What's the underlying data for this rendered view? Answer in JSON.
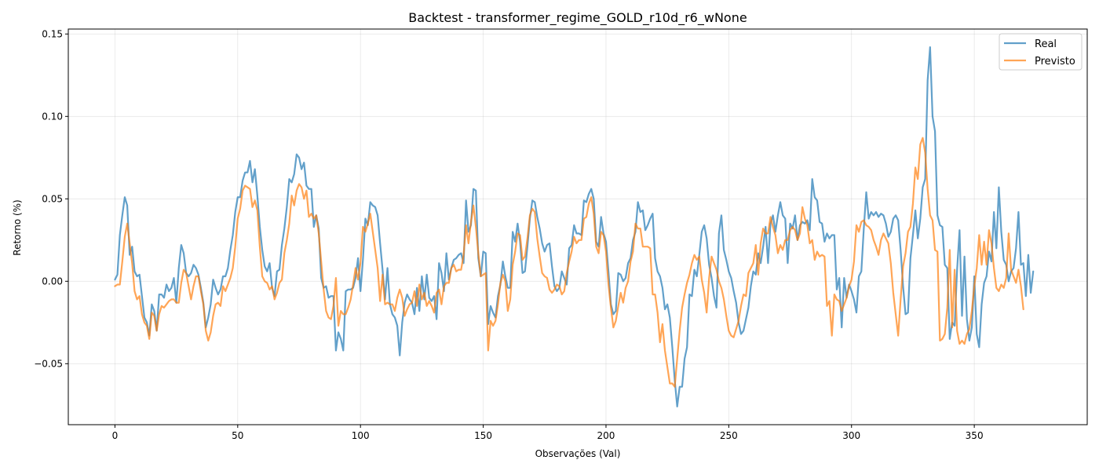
{
  "chart_data": {
    "type": "line",
    "title": "Backtest - transformer_regime_GOLD_r10d_r6_wNone",
    "xlabel": "Observações (Val)",
    "ylabel": "Retorno (%)",
    "xlim": [
      -19,
      396
    ],
    "ylim": [
      -0.087,
      0.153
    ],
    "x_ticks": [
      0,
      50,
      100,
      150,
      200,
      250,
      300,
      350
    ],
    "y_ticks": [
      -0.05,
      0.0,
      0.05,
      0.1,
      0.15
    ],
    "y_tick_labels": [
      "−0.05",
      "0.00",
      "0.05",
      "0.10",
      "0.15"
    ],
    "grid": true,
    "legend_position": "top-right",
    "series": [
      {
        "name": "Real",
        "color": "#1f77b4",
        "opacity": 0.7,
        "x_start": 0,
        "values": [
          0.001,
          0.004,
          0.028,
          0.04,
          0.051,
          0.046,
          0.016,
          0.021,
          0.006,
          0.003,
          0.004,
          -0.009,
          -0.022,
          -0.025,
          -0.033,
          -0.014,
          -0.018,
          -0.03,
          -0.008,
          -0.008,
          -0.01,
          -0.002,
          -0.006,
          -0.004,
          0.002,
          -0.013,
          0.008,
          0.022,
          0.017,
          0.005,
          0.003,
          0.005,
          0.01,
          0.008,
          0.004,
          -0.004,
          -0.013,
          -0.028,
          -0.022,
          -0.014,
          0.001,
          -0.004,
          -0.008,
          -0.005,
          0.003,
          0.003,
          0.008,
          0.019,
          0.028,
          0.042,
          0.051,
          0.051,
          0.061,
          0.066,
          0.066,
          0.073,
          0.06,
          0.068,
          0.052,
          0.033,
          0.019,
          0.009,
          0.006,
          0.011,
          -0.004,
          -0.009,
          0.006,
          0.007,
          0.022,
          0.032,
          0.045,
          0.062,
          0.06,
          0.065,
          0.077,
          0.075,
          0.068,
          0.072,
          0.058,
          0.056,
          0.056,
          0.033,
          0.04,
          0.032,
          0.002,
          -0.004,
          -0.003,
          -0.01,
          -0.009,
          -0.009,
          -0.042,
          -0.031,
          -0.035,
          -0.042,
          -0.006,
          -0.005,
          -0.005,
          -0.004,
          0.002,
          0.014,
          -0.006,
          0.013,
          0.038,
          0.034,
          0.048,
          0.046,
          0.045,
          0.04,
          0.023,
          0.007,
          -0.011,
          0.008,
          -0.014,
          -0.02,
          -0.022,
          -0.027,
          -0.045,
          -0.025,
          -0.013,
          -0.008,
          -0.011,
          -0.013,
          -0.02,
          -0.004,
          -0.018,
          0.003,
          -0.011,
          0.004,
          -0.01,
          -0.012,
          -0.009,
          -0.023,
          0.011,
          0.005,
          -0.006,
          0.017,
          0.001,
          0.008,
          0.013,
          0.014,
          0.016,
          0.017,
          0.011,
          0.049,
          0.03,
          0.034,
          0.056,
          0.055,
          0.014,
          0.003,
          0.018,
          0.017,
          -0.026,
          -0.015,
          -0.019,
          -0.022,
          -0.009,
          -0.002,
          0.012,
          0.003,
          -0.004,
          -0.004,
          0.03,
          0.024,
          0.035,
          0.024,
          0.005,
          0.006,
          0.021,
          0.038,
          0.049,
          0.048,
          0.039,
          0.032,
          0.023,
          0.018,
          0.022,
          0.023,
          0.009,
          -0.003,
          -0.006,
          -0.004,
          0.006,
          0.002,
          -0.002,
          0.02,
          0.022,
          0.034,
          0.029,
          0.029,
          0.028,
          0.049,
          0.048,
          0.053,
          0.056,
          0.05,
          0.024,
          0.021,
          0.039,
          0.029,
          0.024,
          0.006,
          -0.014,
          -0.02,
          -0.018,
          0.005,
          0.004,
          0.0,
          0.002,
          0.011,
          0.014,
          0.025,
          0.03,
          0.048,
          0.042,
          0.043,
          0.031,
          0.034,
          0.038,
          0.041,
          0.014,
          0.006,
          0.003,
          -0.004,
          -0.017,
          -0.014,
          -0.022,
          -0.04,
          -0.06,
          -0.076,
          -0.064,
          -0.064,
          -0.047,
          -0.04,
          -0.008,
          -0.009,
          0.007,
          0.003,
          0.016,
          0.03,
          0.034,
          0.026,
          0.01,
          0.002,
          -0.009,
          -0.016,
          0.029,
          0.04,
          0.019,
          0.013,
          0.006,
          0.002,
          -0.006,
          -0.013,
          -0.025,
          -0.032,
          -0.03,
          -0.023,
          -0.016,
          -0.003,
          0.006,
          0.004,
          0.017,
          0.011,
          0.021,
          0.033,
          0.011,
          0.035,
          0.04,
          0.03,
          0.04,
          0.048,
          0.04,
          0.038,
          0.011,
          0.035,
          0.032,
          0.04,
          0.025,
          0.034,
          0.036,
          0.035,
          0.037,
          0.031,
          0.062,
          0.051,
          0.049,
          0.036,
          0.035,
          0.024,
          0.029,
          0.026,
          0.028,
          0.028,
          -0.005,
          0.002,
          -0.028,
          0.002,
          -0.01,
          -0.002,
          -0.006,
          -0.011,
          -0.019,
          0.003,
          0.006,
          0.032,
          0.054,
          0.038,
          0.042,
          0.04,
          0.042,
          0.039,
          0.041,
          0.04,
          0.035,
          0.027,
          0.03,
          0.038,
          0.04,
          0.037,
          0.019,
          -0.003,
          -0.02,
          -0.019,
          0.014,
          0.028,
          0.043,
          0.026,
          0.038,
          0.057,
          0.062,
          0.122,
          0.142,
          0.1,
          0.091,
          0.04,
          0.034,
          0.033,
          0.01,
          0.008,
          -0.035,
          -0.025,
          -0.027,
          0.007,
          0.031,
          -0.021,
          0.015,
          -0.023,
          -0.036,
          -0.028,
          0.003,
          -0.032,
          -0.04,
          -0.014,
          -0.001,
          0.003,
          0.018,
          0.012,
          0.042,
          0.02,
          0.057,
          0.03,
          0.013,
          0.01,
          0.0,
          0.006,
          0.008,
          0.02,
          0.042,
          0.01,
          0.011,
          -0.009,
          0.016,
          -0.007,
          0.006
        ]
      },
      {
        "name": "Previsto",
        "color": "#ff7f0e",
        "opacity": 0.7,
        "x_start": 0,
        "values": [
          -0.003,
          -0.002,
          -0.002,
          0.012,
          0.027,
          0.035,
          0.023,
          0.011,
          -0.006,
          -0.011,
          -0.009,
          -0.02,
          -0.025,
          -0.027,
          -0.035,
          -0.019,
          -0.021,
          -0.03,
          -0.02,
          -0.015,
          -0.016,
          -0.014,
          -0.012,
          -0.011,
          -0.011,
          -0.013,
          -0.013,
          -0.001,
          0.007,
          0.005,
          -0.003,
          -0.011,
          -0.003,
          0.003,
          0.003,
          -0.006,
          -0.014,
          -0.03,
          -0.036,
          -0.031,
          -0.021,
          -0.014,
          -0.013,
          -0.015,
          -0.003,
          -0.006,
          -0.002,
          0.002,
          0.008,
          0.021,
          0.038,
          0.044,
          0.055,
          0.058,
          0.057,
          0.056,
          0.045,
          0.049,
          0.043,
          0.021,
          0.003,
          0.0,
          -0.001,
          -0.005,
          -0.003,
          -0.011,
          -0.007,
          -0.001,
          0.001,
          0.017,
          0.025,
          0.035,
          0.052,
          0.046,
          0.055,
          0.059,
          0.057,
          0.05,
          0.055,
          0.039,
          0.041,
          0.038,
          0.04,
          0.029,
          0.012,
          -0.005,
          -0.018,
          -0.022,
          -0.023,
          -0.015,
          0.002,
          -0.027,
          -0.018,
          -0.02,
          -0.02,
          -0.016,
          -0.011,
          -0.002,
          0.008,
          0.001,
          0.011,
          0.033,
          0.03,
          0.035,
          0.041,
          0.03,
          0.019,
          0.008,
          -0.012,
          0.004,
          -0.014,
          -0.013,
          -0.014,
          -0.014,
          -0.018,
          -0.01,
          -0.005,
          -0.01,
          -0.021,
          -0.017,
          -0.014,
          -0.013,
          -0.006,
          -0.015,
          -0.002,
          -0.011,
          -0.007,
          -0.015,
          -0.012,
          -0.015,
          -0.019,
          -0.007,
          -0.005,
          -0.014,
          -0.003,
          -0.001,
          -0.001,
          0.008,
          0.01,
          0.006,
          0.007,
          0.007,
          0.016,
          0.034,
          0.023,
          0.036,
          0.046,
          0.033,
          0.017,
          0.003,
          0.004,
          0.005,
          -0.042,
          -0.024,
          -0.027,
          -0.024,
          -0.014,
          -0.001,
          0.004,
          0.0,
          -0.018,
          -0.011,
          0.01,
          0.018,
          0.029,
          0.028,
          0.013,
          0.015,
          0.026,
          0.04,
          0.044,
          0.042,
          0.026,
          0.015,
          0.005,
          0.003,
          0.002,
          -0.005,
          -0.007,
          -0.005,
          -0.002,
          -0.003,
          -0.008,
          -0.006,
          0.005,
          0.012,
          0.018,
          0.027,
          0.023,
          0.025,
          0.025,
          0.038,
          0.039,
          0.047,
          0.051,
          0.041,
          0.021,
          0.017,
          0.03,
          0.028,
          0.018,
          -0.002,
          -0.016,
          -0.028,
          -0.024,
          -0.015,
          -0.007,
          -0.013,
          -0.004,
          0.0,
          0.012,
          0.018,
          0.035,
          0.032,
          0.032,
          0.021,
          0.021,
          0.021,
          0.02,
          -0.008,
          -0.008,
          -0.019,
          -0.037,
          -0.026,
          -0.042,
          -0.052,
          -0.062,
          -0.062,
          -0.064,
          -0.047,
          -0.03,
          -0.016,
          -0.008,
          -0.001,
          0.004,
          0.011,
          0.016,
          0.013,
          0.015,
          0.001,
          -0.007,
          -0.019,
          0.002,
          0.015,
          0.011,
          0.007,
          0.0,
          -0.004,
          -0.011,
          -0.021,
          -0.03,
          -0.033,
          -0.034,
          -0.029,
          -0.024,
          -0.015,
          -0.008,
          -0.009,
          0.005,
          0.008,
          0.011,
          0.022,
          0.004,
          0.023,
          0.032,
          0.029,
          0.029,
          0.039,
          0.033,
          0.028,
          0.017,
          0.022,
          0.019,
          0.025,
          0.025,
          0.031,
          0.033,
          0.031,
          0.025,
          0.029,
          0.045,
          0.038,
          0.034,
          0.023,
          0.025,
          0.013,
          0.018,
          0.015,
          0.016,
          0.015,
          -0.015,
          -0.012,
          -0.033,
          -0.008,
          -0.011,
          -0.012,
          -0.018,
          -0.014,
          -0.01,
          -0.003,
          0.001,
          0.012,
          0.034,
          0.03,
          0.036,
          0.037,
          0.034,
          0.033,
          0.031,
          0.025,
          0.021,
          0.016,
          0.025,
          0.029,
          0.026,
          0.023,
          0.011,
          -0.007,
          -0.02,
          -0.033,
          -0.011,
          0.009,
          0.017,
          0.03,
          0.033,
          0.047,
          0.069,
          0.062,
          0.083,
          0.087,
          0.078,
          0.056,
          0.04,
          0.037,
          0.019,
          0.018,
          -0.036,
          -0.035,
          -0.032,
          -0.016,
          0.019,
          -0.028,
          0.007,
          -0.03,
          -0.038,
          -0.036,
          -0.038,
          -0.032,
          -0.029,
          -0.018,
          -0.003,
          0.008,
          0.028,
          0.01,
          0.024,
          0.01,
          0.031,
          0.023,
          0.008,
          -0.004,
          -0.006,
          -0.002,
          -0.004,
          0.002,
          0.029,
          0.007,
          0.003,
          -0.001,
          0.007,
          -0.003,
          -0.017
        ]
      }
    ]
  }
}
